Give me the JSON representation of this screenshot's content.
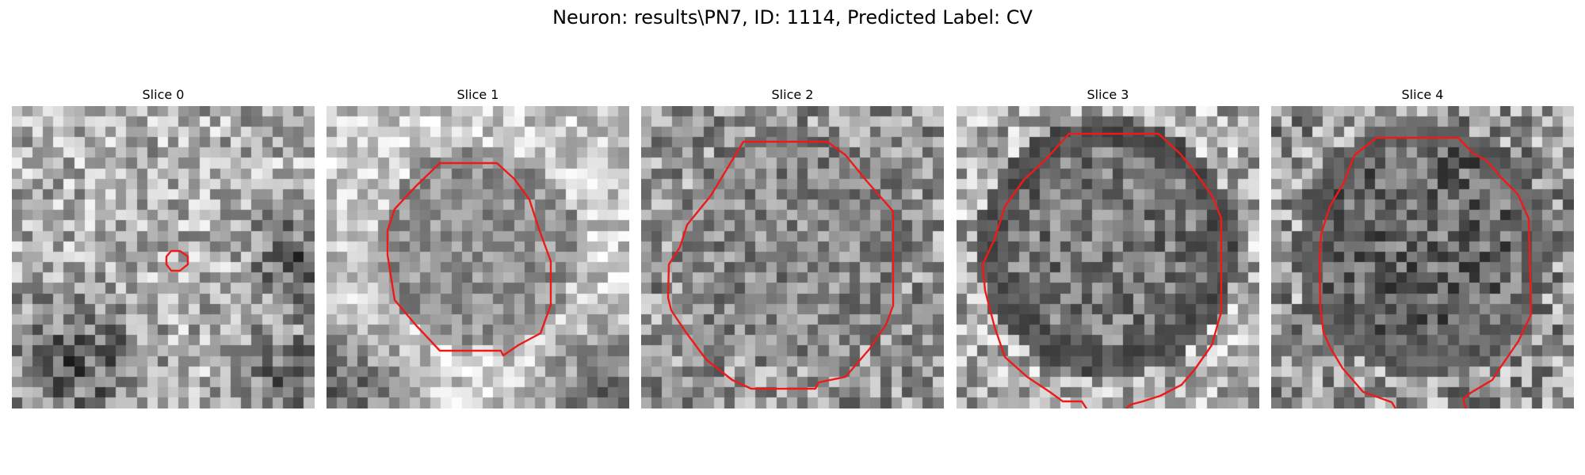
{
  "figure": {
    "title": "Neuron: results\\PN7, ID: 1114, Predicted Label: CV",
    "contour_color": "#ee1a1a"
  },
  "slices": [
    {
      "label": "Slice 0"
    },
    {
      "label": "Slice 1"
    },
    {
      "label": "Slice 2"
    },
    {
      "label": "Slice 3"
    },
    {
      "label": "Slice 4"
    }
  ]
}
